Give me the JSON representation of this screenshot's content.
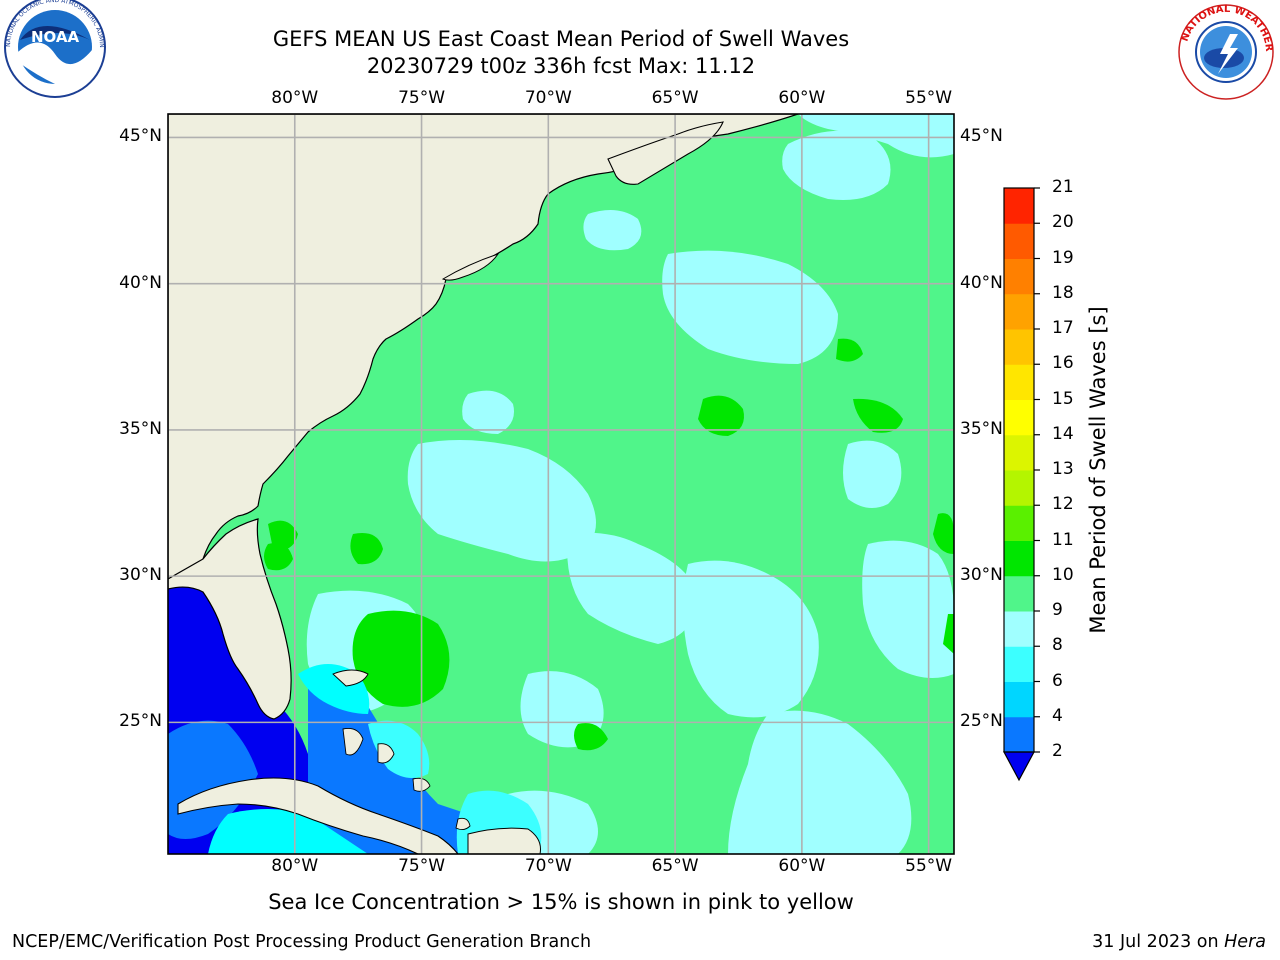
{
  "title": {
    "line1": "GEFS MEAN US East Coast Mean Period of Swell Waves",
    "line2": "20230729 t00z 336h fcst   Max: 11.12"
  },
  "map": {
    "lon_min": -85,
    "lon_max": -54,
    "lat_min": 20.5,
    "lat_max": 45.8,
    "lon_ticks": [
      {
        "value": -80,
        "label": "80°W"
      },
      {
        "value": -75,
        "label": "75°W"
      },
      {
        "value": -70,
        "label": "70°W"
      },
      {
        "value": -65,
        "label": "65°W"
      },
      {
        "value": -60,
        "label": "60°W"
      },
      {
        "value": -55,
        "label": "55°W"
      }
    ],
    "lat_ticks": [
      {
        "value": 45,
        "label": "45°N"
      },
      {
        "value": 40,
        "label": "40°N"
      },
      {
        "value": 35,
        "label": "35°N"
      },
      {
        "value": 30,
        "label": "30°N"
      },
      {
        "value": 25,
        "label": "25°N"
      }
    ],
    "land_color": "#efefdf",
    "grid_color": "#b0b0b0",
    "field_colors": {
      "2-4": "#0000f0",
      "4-6": "#0a78ff",
      "6-8": "#00ffff",
      "8-9": "#a0ffff",
      "9-10": "#50f58a",
      "10-11": "#00e600"
    }
  },
  "colorbar": {
    "label": "Mean Period of Swell Waves [s]",
    "levels": [
      "2",
      "4",
      "6",
      "8",
      "9",
      "10",
      "11",
      "12",
      "13",
      "14",
      "15",
      "16",
      "17",
      "18",
      "19",
      "20",
      "21"
    ],
    "colors": [
      "#0a78ff",
      "#00d6ff",
      "#3cffff",
      "#a0ffff",
      "#50f58a",
      "#00e600",
      "#5af000",
      "#b4f500",
      "#dcf500",
      "#ffff00",
      "#ffe600",
      "#ffc400",
      "#ffa200",
      "#ff8000",
      "#ff5a00",
      "#ff2400"
    ],
    "under_color": "#0000f0"
  },
  "note": "Sea Ice Concentration > 15% is shown in pink to yellow",
  "footer": {
    "left": "NCEP/EMC/Verification Post Processing Product Generation Branch",
    "right_date": "31 Jul 2023 on ",
    "right_host": "Hera"
  },
  "logos": {
    "noaa_text": "NOAA",
    "noaa_ring": "NATIONAL OCEANIC AND ATMOSPHERIC ADMINISTRATION · U.S. DEPARTMENT OF COMMERCE",
    "nws_ring": "NATIONAL WEATHER SERVICE"
  }
}
